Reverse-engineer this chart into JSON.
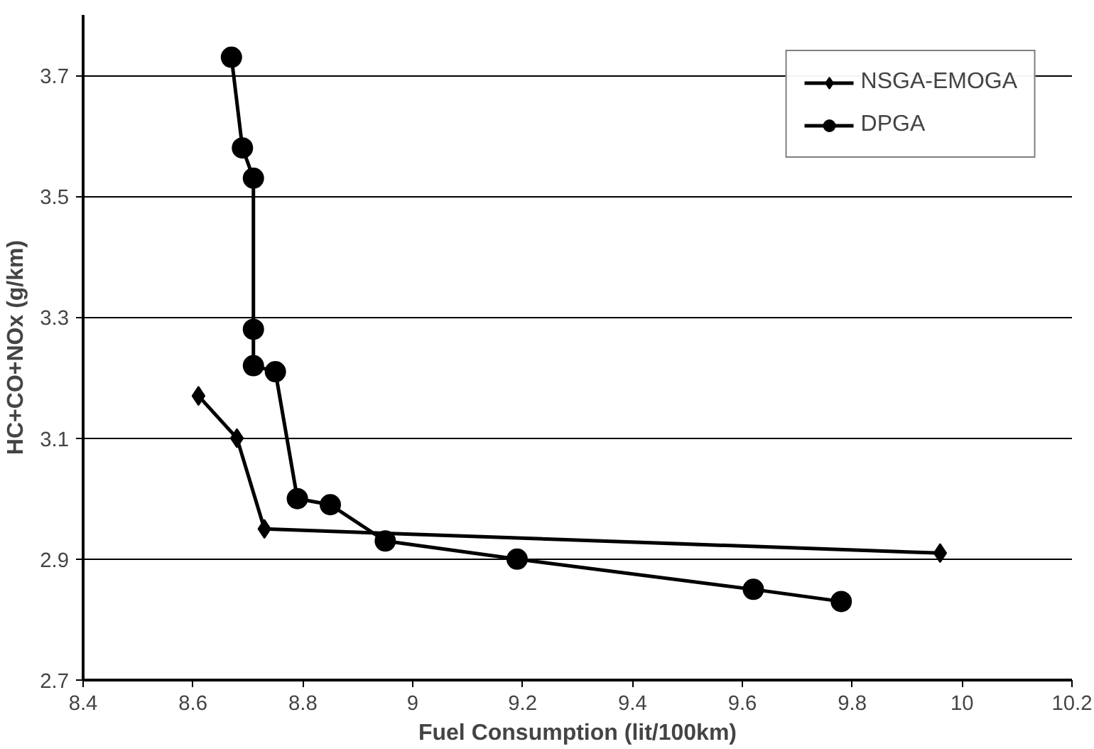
{
  "chart_data": {
    "type": "line",
    "xlabel": "Fuel Consumption (lit/100km)",
    "ylabel": "HC+CO+NOx (g/km)",
    "xlim": [
      8.4,
      10.2
    ],
    "xticks": [
      8.4,
      8.6,
      8.8,
      9,
      9.2,
      9.4,
      9.6,
      9.8,
      10,
      10.2
    ],
    "ylim": [
      2.7,
      3.8
    ],
    "yticks": [
      2.7,
      2.9,
      3.1,
      3.3,
      3.5,
      3.7
    ],
    "grid": "y",
    "legend": "top right",
    "line_style": "solid",
    "series": [
      {
        "name": "NSGA-EMOGA",
        "color": "#000000",
        "marker": "diamond",
        "x": [
          8.61,
          8.68,
          8.73,
          9.96
        ],
        "values": [
          3.17,
          3.1,
          2.95,
          2.91
        ]
      },
      {
        "name": "DPGA",
        "color": "#000000",
        "marker": "circle",
        "x": [
          8.67,
          8.69,
          8.71,
          8.71,
          8.71,
          8.75,
          8.79,
          8.85,
          8.95,
          9.19,
          9.62,
          9.78
        ],
        "values": [
          3.73,
          3.58,
          3.53,
          3.28,
          3.22,
          3.21,
          3.0,
          2.99,
          2.93,
          2.9,
          2.85,
          2.83
        ]
      }
    ]
  }
}
